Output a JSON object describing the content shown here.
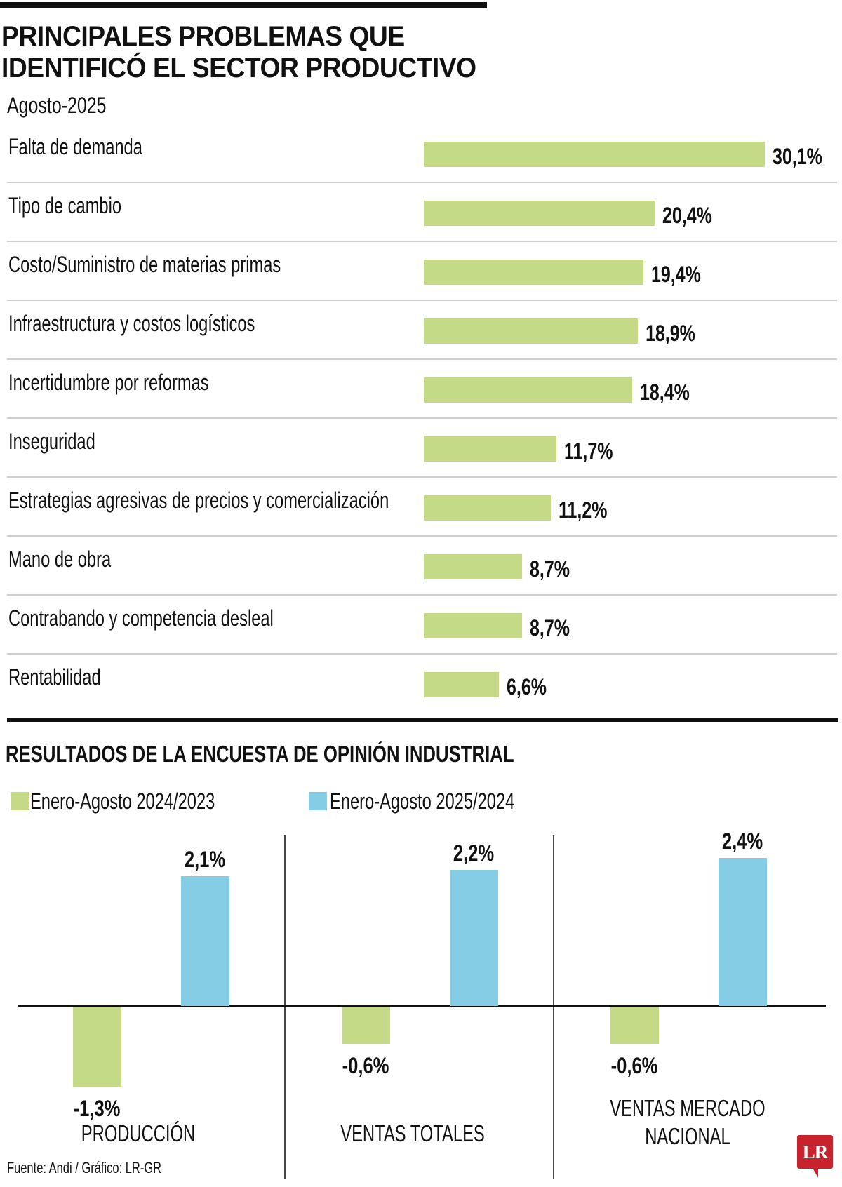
{
  "header": {
    "title_line1": "PRINCIPALES PROBLEMAS QUE",
    "title_line2": "IDENTIFICÓ EL SECTOR PRODUCTIVO",
    "subtitle": "Agosto-2025"
  },
  "section2": {
    "title": "RESULTADOS DE LA ENCUESTA DE OPINIÓN INDUSTRIAL"
  },
  "footer": {
    "source": "Fuente: Andi / Gráfico: LR-GR",
    "logo": "LR"
  },
  "colors": {
    "green": "#c5da87",
    "blue": "#84cde4",
    "logo_red": "#c8232c"
  },
  "chart_data": [
    {
      "type": "bar",
      "orientation": "horizontal",
      "title": "PRINCIPALES PROBLEMAS QUE IDENTIFICÓ EL SECTOR PRODUCTIVO",
      "subtitle": "Agosto-2025",
      "categories": [
        "Falta de demanda",
        "Tipo de cambio",
        "Costo/Suministro de materias primas",
        "Infraestructura y costos logísticos",
        "Incertidumbre por reformas",
        "Inseguridad",
        "Estrategias agresivas de precios y comercialización",
        "Mano de obra",
        "Contrabando y competencia desleal",
        "Rentabilidad"
      ],
      "values": [
        30.1,
        20.4,
        19.4,
        18.9,
        18.4,
        11.7,
        11.2,
        8.7,
        8.7,
        6.6
      ],
      "value_labels": [
        "30,1%",
        "20,4%",
        "19,4%",
        "18,9%",
        "18,4%",
        "11,7%",
        "11,2%",
        "8,7%",
        "8,7%",
        "6,6%"
      ],
      "unit": "%",
      "xlim": [
        0,
        30.1
      ],
      "grid": false
    },
    {
      "type": "bar",
      "orientation": "vertical",
      "title": "RESULTADOS DE LA ENCUESTA DE OPINIÓN INDUSTRIAL",
      "categories": [
        "PRODUCCIÓN",
        "VENTAS TOTALES",
        "VENTAS MERCADO NACIONAL"
      ],
      "category_lines": [
        [
          "PRODUCCIÓN"
        ],
        [
          "VENTAS TOTALES"
        ],
        [
          "VENTAS MERCADO",
          "NACIONAL"
        ]
      ],
      "series": [
        {
          "name": "Enero-Agosto 2024/2023",
          "color": "#c5da87",
          "values": [
            -1.3,
            -0.6,
            -0.6
          ],
          "labels": [
            "-1,3%",
            "-0,6%",
            "-0,6%"
          ]
        },
        {
          "name": "Enero-Agosto 2025/2024",
          "color": "#84cde4",
          "values": [
            2.1,
            2.2,
            2.4
          ],
          "labels": [
            "2,1%",
            "2,2%",
            "2,4%"
          ]
        }
      ],
      "legend": "top-left",
      "unit": "%",
      "ylim": [
        -1.3,
        2.4
      ],
      "grid": false
    }
  ]
}
